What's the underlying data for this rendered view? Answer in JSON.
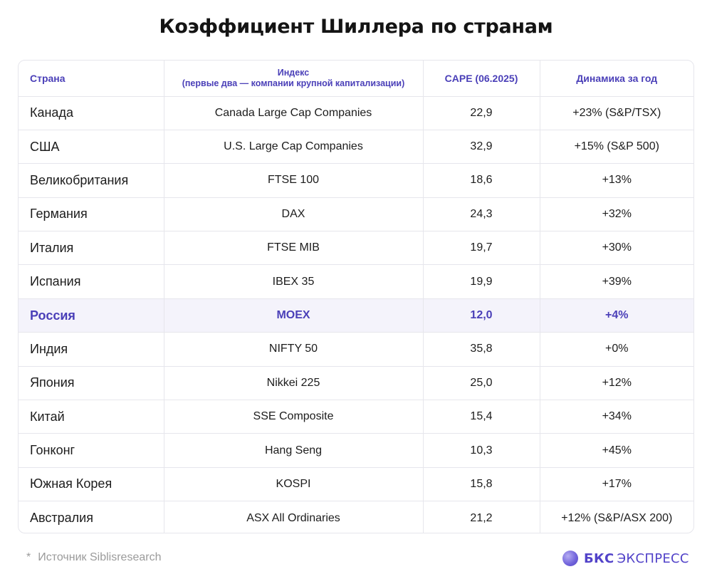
{
  "title": "Коэффициент Шиллера по странам",
  "table": {
    "headers": {
      "country": "Страна",
      "index_line1": "Индекс",
      "index_line2": "(первые два — компании крупной капитализации)",
      "cape": "CAPE (06.2025)",
      "dynamics": "Динамика за год"
    },
    "rows": [
      {
        "country": "Канада",
        "index": "Canada Large Cap Companies",
        "cape": "22,9",
        "dynamics": "+23% (S&P/TSX)"
      },
      {
        "country": "США",
        "index": "U.S. Large Cap Companies",
        "cape": "32,9",
        "dynamics": "+15% (S&P 500)"
      },
      {
        "country": "Великобритания",
        "index": "FTSE 100",
        "cape": "18,6",
        "dynamics": "+13%"
      },
      {
        "country": "Германия",
        "index": "DAX",
        "cape": "24,3",
        "dynamics": "+32%"
      },
      {
        "country": "Италия",
        "index": "FTSE MIB",
        "cape": "19,7",
        "dynamics": "+30%"
      },
      {
        "country": "Испания",
        "index": "IBEX 35",
        "cape": "19,9",
        "dynamics": "+39%"
      },
      {
        "country": "Россия",
        "index": "MOEX",
        "cape": "12,0",
        "dynamics": "+4%"
      },
      {
        "country": "Индия",
        "index": "NIFTY 50",
        "cape": "35,8",
        "dynamics": "+0%"
      },
      {
        "country": "Япония",
        "index": "Nikkei 225",
        "cape": "25,0",
        "dynamics": "+12%"
      },
      {
        "country": "Китай",
        "index": "SSE Composite",
        "cape": "15,4",
        "dynamics": "+34%"
      },
      {
        "country": "Гонконг",
        "index": "Hang Seng",
        "cape": "10,3",
        "dynamics": "+45%"
      },
      {
        "country": "Южная Корея",
        "index": "KOSPI",
        "cape": "15,8",
        "dynamics": "+17%"
      },
      {
        "country": "Австралия",
        "index": "ASX All Ordinaries",
        "cape": "21,2",
        "dynamics": "+12% (S&P/ASX 200)"
      }
    ],
    "highlight_row_index": 6
  },
  "footnote": {
    "marker": "*",
    "text": "Источник Siblisresearch"
  },
  "brand": {
    "icon": "sphere-logo-icon",
    "part1": "БКС",
    "part2": "ЭКСПРЕСС"
  },
  "colors": {
    "accent": "#4a3fb8",
    "highlight_bg": "#f4f3fb",
    "border": "#e6e6ec"
  }
}
